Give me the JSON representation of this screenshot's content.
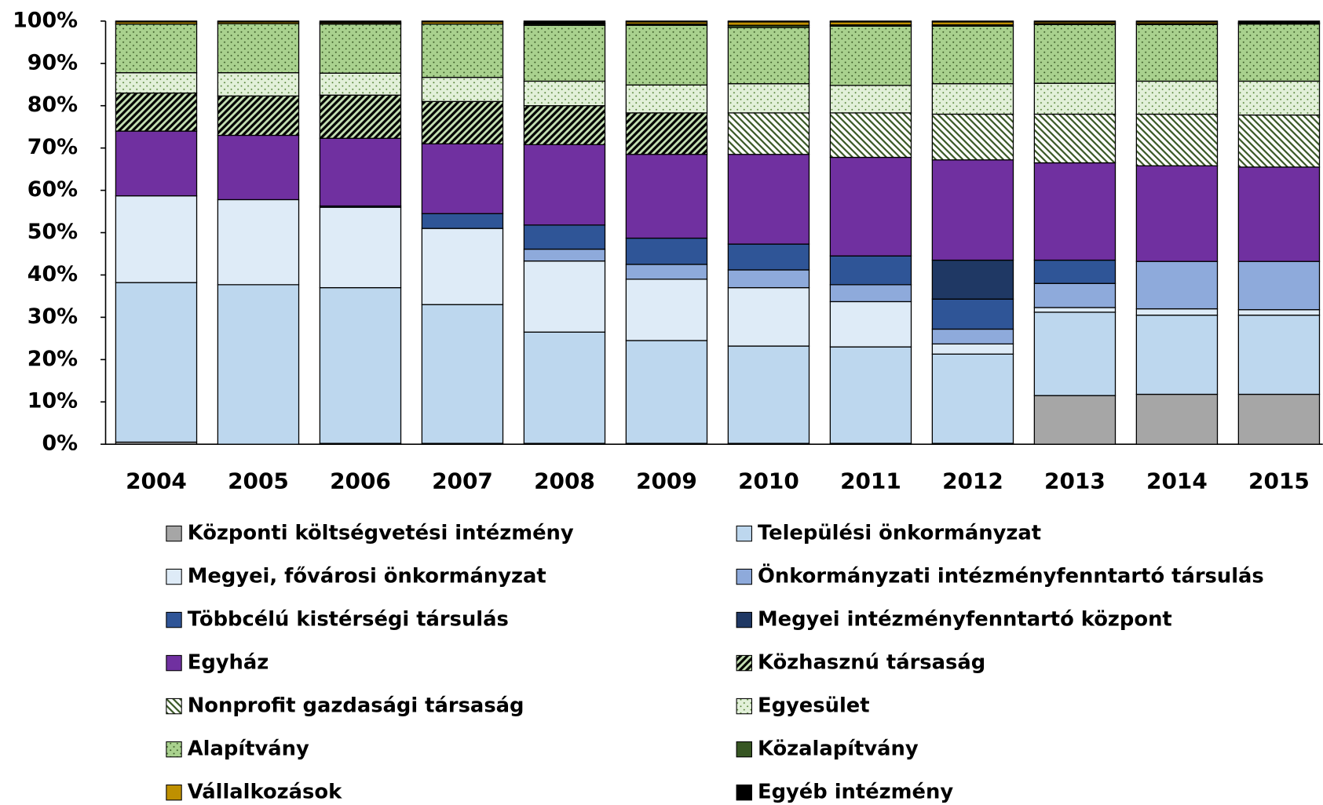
{
  "chart_data": {
    "type": "stacked_bar",
    "categories": [
      "2004",
      "2005",
      "2006",
      "2007",
      "2008",
      "2009",
      "2010",
      "2011",
      "2012",
      "2013",
      "2014",
      "2015"
    ],
    "ylim": [
      0,
      100
    ],
    "yticks": [
      {
        "value": 0,
        "label": "0%"
      },
      {
        "value": 10,
        "label": "10%"
      },
      {
        "value": 20,
        "label": "20%"
      },
      {
        "value": 30,
        "label": "30%"
      },
      {
        "value": 40,
        "label": "40%"
      },
      {
        "value": 50,
        "label": "50%"
      },
      {
        "value": 60,
        "label": "60%"
      },
      {
        "value": 70,
        "label": "70%"
      },
      {
        "value": 80,
        "label": "80%"
      },
      {
        "value": 90,
        "label": "90%"
      },
      {
        "value": 100,
        "label": "100%"
      }
    ],
    "series": [
      {
        "name": "Központi költségvetési intézmény",
        "color": "#a6a6a6",
        "values": [
          0.5,
          0,
          0.2,
          0.2,
          0.2,
          0.2,
          0.2,
          0.2,
          0.2,
          11.5,
          11.8,
          11.8
        ]
      },
      {
        "name": "Települési önkormányzat",
        "color": "#bdd7ee",
        "values": [
          37.7,
          37.7,
          36.8,
          32.8,
          26.3,
          24.3,
          23,
          22.8,
          21.1,
          19.7,
          18.7,
          18.7
        ]
      },
      {
        "name": "Megyei, fővárosi önkormányzat",
        "color": "#deebf7",
        "values": [
          20.5,
          20.1,
          19,
          18,
          16.8,
          14.5,
          13.8,
          10.7,
          2.4,
          1.1,
          1.5,
          1.3
        ]
      },
      {
        "name": "Önkormányzati intézményfenntartó társulás",
        "color": "#8eaadb",
        "values": [
          0,
          0,
          0,
          0,
          2.8,
          3.5,
          4.2,
          4,
          3.5,
          5.7,
          11.2,
          11.4
        ]
      },
      {
        "name": "Többcélú kistérségi társulás",
        "color": "#2f5597",
        "values": [
          0,
          0,
          0.3,
          3.5,
          5.7,
          6.2,
          6.1,
          6.8,
          7.1,
          5.5,
          0,
          0
        ]
      },
      {
        "name": "Megyei intézményfenntartó központ",
        "color": "#1f3864",
        "values": [
          0,
          0,
          0,
          0,
          0,
          0,
          0,
          0,
          9.2,
          0,
          0,
          0
        ]
      },
      {
        "name": "Egyház",
        "color": "#7030a0",
        "values": [
          15.3,
          15.2,
          16,
          16.5,
          19,
          19.8,
          21.2,
          23.3,
          23.7,
          23,
          22.6,
          22.3
        ]
      },
      {
        "name": "Közhasznú társaság",
        "color": "#c5e0b4",
        "pattern": "hatch",
        "pattern_color": "#000000",
        "values": [
          9,
          9.3,
          10.2,
          10,
          9.2,
          9.8,
          0,
          0,
          0,
          0,
          0,
          0
        ]
      },
      {
        "name": "Nonprofit gazdasági társaság",
        "color": "#ffffff",
        "pattern": "backhatch",
        "pattern_color": "#375623",
        "values": [
          0,
          0,
          0,
          0,
          0,
          0,
          9.8,
          10.5,
          10.8,
          11.5,
          12.2,
          12.3
        ]
      },
      {
        "name": "Egyesület",
        "color": "#e2f0d9",
        "pattern": "dots",
        "pattern_color": "#548235",
        "values": [
          4.8,
          5.5,
          5.2,
          5.7,
          5.8,
          6.6,
          6.9,
          6.5,
          7.2,
          7.3,
          7.8,
          8
        ]
      },
      {
        "name": "Alapítvány",
        "color": "#a9d18e",
        "pattern": "dots",
        "pattern_color": "#375623",
        "values": [
          11.5,
          11.6,
          11.6,
          12.6,
          13.2,
          14.1,
          13.3,
          14,
          13.6,
          13.9,
          13.4,
          13.5
        ]
      },
      {
        "name": "Közalapítvány",
        "color": "#375623",
        "values": [
          0,
          0,
          0,
          0,
          0.3,
          0.3,
          0.5,
          0.3,
          0.3,
          0.2,
          0.2,
          0.2
        ]
      },
      {
        "name": "Vállalkozások",
        "color": "#bf9000",
        "values": [
          0.5,
          0.4,
          0.3,
          0.5,
          0.2,
          0.5,
          0.8,
          0.7,
          0.7,
          0.4,
          0.4,
          0.1
        ]
      },
      {
        "name": "Egyéb intézmény",
        "color": "#000000",
        "values": [
          0.2,
          0.2,
          0.4,
          0.2,
          0.5,
          0.2,
          0.2,
          0.2,
          0.2,
          0.2,
          0.2,
          0.4
        ]
      }
    ]
  }
}
